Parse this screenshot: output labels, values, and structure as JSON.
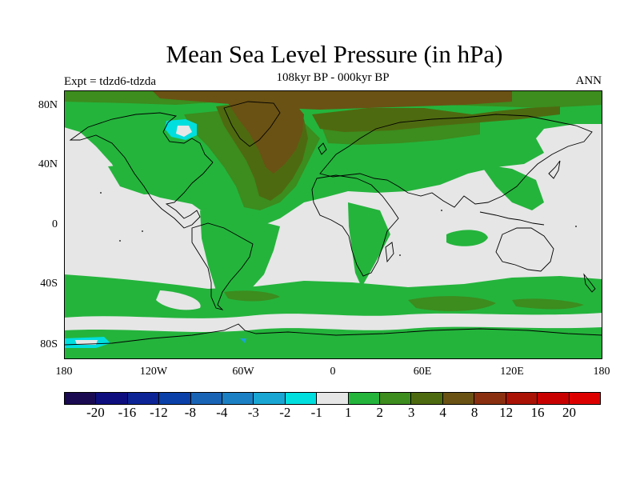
{
  "header": {
    "title": "Mean Sea Level Pressure (in hPa)",
    "subtitle": "108kyr BP - 000kyr BP",
    "experiment": "Expt = tdzd6-tdzda",
    "season": "ANN"
  },
  "axes": {
    "lat_labels": [
      "80N",
      "40N",
      "0",
      "40S",
      "80S"
    ],
    "lon_labels": [
      "180",
      "120W",
      "60W",
      "0",
      "60E",
      "120E",
      "180"
    ]
  },
  "colorbar": {
    "levels": [
      "-20",
      "-16",
      "-12",
      "-8",
      "-4",
      "-3",
      "-2",
      "-1",
      "1",
      "2",
      "3",
      "4",
      "8",
      "12",
      "16",
      "20"
    ],
    "colors": [
      "#1a0a52",
      "#0e0e7e",
      "#0c2496",
      "#0a40a8",
      "#1a64b6",
      "#1c80c4",
      "#1aa6d2",
      "#00dede",
      "#e6e6e6",
      "#24b43c",
      "#3c8c1e",
      "#4e6a10",
      "#6a5214",
      "#8a3010",
      "#aa1206",
      "#c80000",
      "#dd0000"
    ]
  },
  "map_colors": {
    "neutral": "#e6e6e6",
    "green": "#24b43c",
    "dark_green": "#3c8c1e",
    "olive": "#4e6a10",
    "brown": "#6a5214",
    "cyan": "#00dede",
    "blue": "#1aa6d2"
  }
}
